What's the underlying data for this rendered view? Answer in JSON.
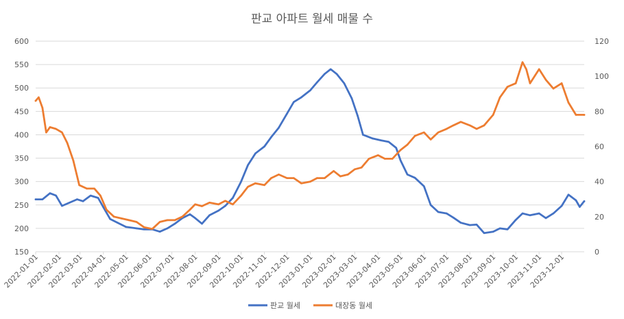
{
  "chart_data": {
    "type": "line",
    "title": "판교 아파트 월세 매물 수",
    "xlabel": "",
    "ylabel": "",
    "y2label": "",
    "ylim": [
      150,
      600
    ],
    "y2lim": [
      0,
      120
    ],
    "y_ticks": [
      "150",
      "200",
      "250",
      "300",
      "350",
      "400",
      "450",
      "500",
      "550",
      "600"
    ],
    "y2_ticks": [
      "0",
      "20",
      "40",
      "60",
      "80",
      "100",
      "120"
    ],
    "x_ticks": [
      "2022-01-01",
      "2022-02-01",
      "2022-03-01",
      "2022-04-01",
      "2022-05-01",
      "2022-06-01",
      "2022-07-01",
      "2022-08-01",
      "2022-09-01",
      "2022-10-01",
      "2022-11-01",
      "2022-12-01",
      "2023-01-01",
      "2023-02-01",
      "2023-03-01",
      "2023-04-01",
      "2023-05-01",
      "2023-06-01",
      "2023-07-01",
      "2023-08-01",
      "2023-09-01",
      "2023-10-01",
      "2023-11-01",
      "2023-12-01"
    ],
    "x_range": [
      "2022-01-01",
      "2023-12-31"
    ],
    "grid": true,
    "legend": "bottom",
    "series": [
      {
        "name": "판교 월세",
        "axis": "left",
        "color": "#4472C4",
        "points": [
          [
            "2022-01-01",
            262
          ],
          [
            "2022-01-10",
            262
          ],
          [
            "2022-01-20",
            275
          ],
          [
            "2022-01-28",
            270
          ],
          [
            "2022-02-05",
            248
          ],
          [
            "2022-02-15",
            255
          ],
          [
            "2022-02-25",
            262
          ],
          [
            "2022-03-05",
            258
          ],
          [
            "2022-03-15",
            270
          ],
          [
            "2022-03-25",
            265
          ],
          [
            "2022-04-01",
            245
          ],
          [
            "2022-04-10",
            220
          ],
          [
            "2022-04-20",
            212
          ],
          [
            "2022-05-01",
            203
          ],
          [
            "2022-05-15",
            200
          ],
          [
            "2022-05-25",
            198
          ],
          [
            "2022-06-05",
            198
          ],
          [
            "2022-06-15",
            193
          ],
          [
            "2022-06-25",
            200
          ],
          [
            "2022-07-05",
            210
          ],
          [
            "2022-07-15",
            222
          ],
          [
            "2022-07-25",
            230
          ],
          [
            "2022-08-01",
            222
          ],
          [
            "2022-08-10",
            210
          ],
          [
            "2022-08-20",
            228
          ],
          [
            "2022-09-01",
            238
          ],
          [
            "2022-09-10",
            248
          ],
          [
            "2022-09-20",
            265
          ],
          [
            "2022-10-01",
            300
          ],
          [
            "2022-10-10",
            335
          ],
          [
            "2022-10-20",
            360
          ],
          [
            "2022-11-01",
            375
          ],
          [
            "2022-11-10",
            395
          ],
          [
            "2022-11-20",
            415
          ],
          [
            "2022-12-01",
            445
          ],
          [
            "2022-12-10",
            470
          ],
          [
            "2022-12-20",
            480
          ],
          [
            "2023-01-01",
            495
          ],
          [
            "2023-01-10",
            512
          ],
          [
            "2023-01-20",
            530
          ],
          [
            "2023-01-28",
            540
          ],
          [
            "2023-02-05",
            530
          ],
          [
            "2023-02-15",
            510
          ],
          [
            "2023-02-25",
            478
          ],
          [
            "2023-03-05",
            440
          ],
          [
            "2023-03-12",
            400
          ],
          [
            "2023-03-25",
            392
          ],
          [
            "2023-04-05",
            388
          ],
          [
            "2023-04-15",
            385
          ],
          [
            "2023-04-25",
            372
          ],
          [
            "2023-05-01",
            345
          ],
          [
            "2023-05-10",
            315
          ],
          [
            "2023-05-20",
            308
          ],
          [
            "2023-06-01",
            290
          ],
          [
            "2023-06-10",
            250
          ],
          [
            "2023-06-20",
            235
          ],
          [
            "2023-07-01",
            232
          ],
          [
            "2023-07-10",
            223
          ],
          [
            "2023-07-20",
            212
          ],
          [
            "2023-08-01",
            207
          ],
          [
            "2023-08-10",
            208
          ],
          [
            "2023-08-20",
            190
          ],
          [
            "2023-09-01",
            193
          ],
          [
            "2023-09-10",
            200
          ],
          [
            "2023-09-20",
            198
          ],
          [
            "2023-10-01",
            218
          ],
          [
            "2023-10-10",
            232
          ],
          [
            "2023-10-20",
            228
          ],
          [
            "2023-11-01",
            232
          ],
          [
            "2023-11-10",
            222
          ],
          [
            "2023-11-20",
            232
          ],
          [
            "2023-12-01",
            248
          ],
          [
            "2023-12-10",
            272
          ],
          [
            "2023-12-20",
            260
          ],
          [
            "2023-12-25",
            246
          ],
          [
            "2023-12-31",
            258
          ]
        ]
      },
      {
        "name": "대장동 월세",
        "axis": "right",
        "color": "#ED7D31",
        "points": [
          [
            "2022-01-01",
            86
          ],
          [
            "2022-01-05",
            88
          ],
          [
            "2022-01-10",
            82
          ],
          [
            "2022-01-15",
            68
          ],
          [
            "2022-01-20",
            71
          ],
          [
            "2022-01-28",
            70
          ],
          [
            "2022-02-05",
            68
          ],
          [
            "2022-02-12",
            62
          ],
          [
            "2022-02-20",
            52
          ],
          [
            "2022-02-28",
            38
          ],
          [
            "2022-03-10",
            36
          ],
          [
            "2022-03-20",
            36
          ],
          [
            "2022-03-28",
            32
          ],
          [
            "2022-04-05",
            24
          ],
          [
            "2022-04-15",
            20
          ],
          [
            "2022-04-25",
            19
          ],
          [
            "2022-05-05",
            18
          ],
          [
            "2022-05-15",
            17
          ],
          [
            "2022-05-25",
            14
          ],
          [
            "2022-06-05",
            13
          ],
          [
            "2022-06-15",
            17
          ],
          [
            "2022-06-25",
            18
          ],
          [
            "2022-07-05",
            18
          ],
          [
            "2022-07-15",
            20
          ],
          [
            "2022-07-25",
            24
          ],
          [
            "2022-08-01",
            27
          ],
          [
            "2022-08-10",
            26
          ],
          [
            "2022-08-20",
            28
          ],
          [
            "2022-09-01",
            27
          ],
          [
            "2022-09-10",
            29
          ],
          [
            "2022-09-20",
            27
          ],
          [
            "2022-10-01",
            32
          ],
          [
            "2022-10-10",
            37
          ],
          [
            "2022-10-20",
            39
          ],
          [
            "2022-11-01",
            38
          ],
          [
            "2022-11-10",
            42
          ],
          [
            "2022-11-20",
            44
          ],
          [
            "2022-12-01",
            42
          ],
          [
            "2022-12-10",
            42
          ],
          [
            "2022-12-20",
            39
          ],
          [
            "2023-01-01",
            40
          ],
          [
            "2023-01-10",
            42
          ],
          [
            "2023-01-20",
            42
          ],
          [
            "2023-02-01",
            46
          ],
          [
            "2023-02-10",
            43
          ],
          [
            "2023-02-20",
            44
          ],
          [
            "2023-03-01",
            47
          ],
          [
            "2023-03-10",
            48
          ],
          [
            "2023-03-20",
            53
          ],
          [
            "2023-04-01",
            55
          ],
          [
            "2023-04-10",
            53
          ],
          [
            "2023-04-20",
            53
          ],
          [
            "2023-05-01",
            58
          ],
          [
            "2023-05-10",
            61
          ],
          [
            "2023-05-20",
            66
          ],
          [
            "2023-06-01",
            68
          ],
          [
            "2023-06-10",
            64
          ],
          [
            "2023-06-20",
            68
          ],
          [
            "2023-07-01",
            70
          ],
          [
            "2023-07-10",
            72
          ],
          [
            "2023-07-20",
            74
          ],
          [
            "2023-08-01",
            72
          ],
          [
            "2023-08-10",
            70
          ],
          [
            "2023-08-20",
            72
          ],
          [
            "2023-09-01",
            78
          ],
          [
            "2023-09-10",
            88
          ],
          [
            "2023-09-20",
            94
          ],
          [
            "2023-10-01",
            96
          ],
          [
            "2023-10-10",
            108
          ],
          [
            "2023-10-15",
            104
          ],
          [
            "2023-10-20",
            96
          ],
          [
            "2023-11-01",
            104
          ],
          [
            "2023-11-10",
            98
          ],
          [
            "2023-11-20",
            93
          ],
          [
            "2023-12-01",
            96
          ],
          [
            "2023-12-10",
            85
          ],
          [
            "2023-12-20",
            78
          ],
          [
            "2023-12-31",
            78
          ]
        ]
      }
    ]
  }
}
